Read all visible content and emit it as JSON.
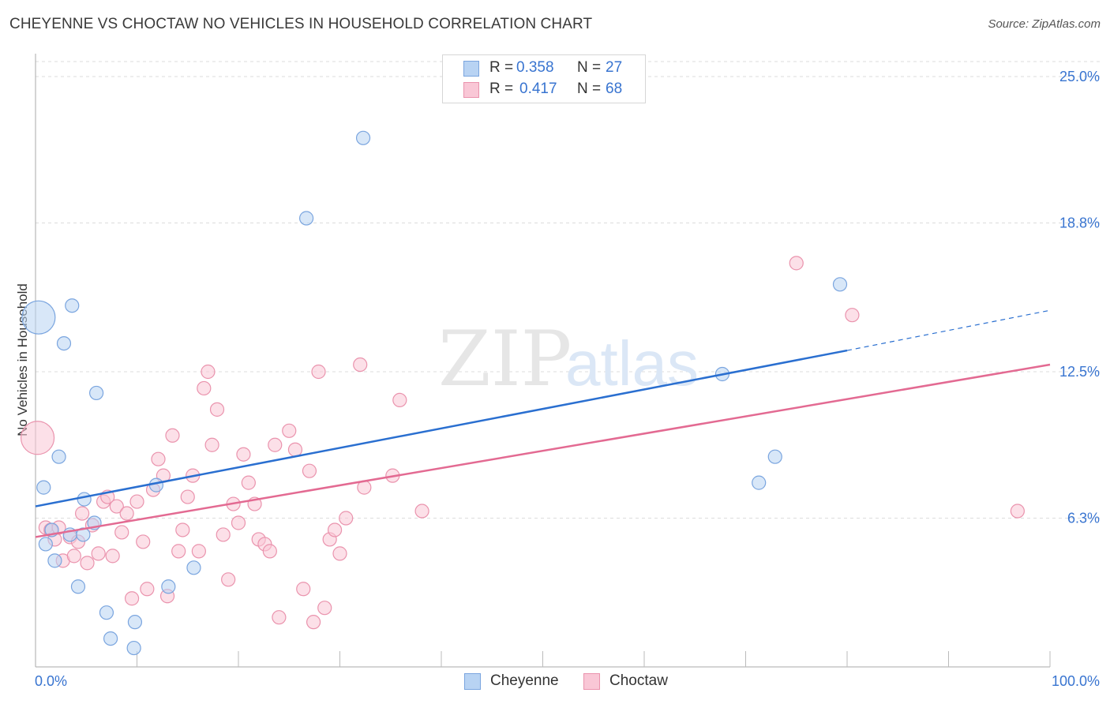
{
  "title": "CHEYENNE VS CHOCTAW NO VEHICLES IN HOUSEHOLD CORRELATION CHART",
  "source": "Source: ZipAtlas.com",
  "legend": {
    "rows": [
      {
        "r_label": "R = ",
        "r_value": "0.358",
        "n_label": "N = ",
        "n_value": "27"
      },
      {
        "r_label": "R = ",
        "r_value": "0.417",
        "n_label": "N = ",
        "n_value": "68"
      }
    ]
  },
  "watermark": {
    "part1": "ZIP",
    "part2": "atlas"
  },
  "colors": {
    "cheyenne_fill": "#b8d3f3",
    "cheyenne_stroke": "#7aa5df",
    "cheyenne_line": "#2a6fd0",
    "choctaw_fill": "#f9c7d6",
    "choctaw_stroke": "#ea93ad",
    "choctaw_line": "#e36a92",
    "axis_label": "#3874d0"
  },
  "chart_data": {
    "type": "scatter",
    "title": "CHEYENNE VS CHOCTAW NO VEHICLES IN HOUSEHOLD CORRELATION CHART",
    "xlabel": "",
    "ylabel": "No Vehicles in Household",
    "xlim": [
      0,
      100
    ],
    "ylim": [
      0,
      25.5
    ],
    "x_tick_labels": [
      "0.0%",
      "100.0%"
    ],
    "y_ticks": [
      6.3,
      12.5,
      18.8,
      25.0
    ],
    "y_tick_labels": [
      "6.3%",
      "12.5%",
      "18.8%",
      "25.0%"
    ],
    "series": [
      {
        "name": "Cheyenne",
        "r": 0.358,
        "n": 27,
        "points": [
          {
            "x": 0.3,
            "y": 14.8,
            "size": "large"
          },
          {
            "x": 0.8,
            "y": 7.6
          },
          {
            "x": 1.0,
            "y": 5.2
          },
          {
            "x": 1.6,
            "y": 5.8
          },
          {
            "x": 1.9,
            "y": 4.5
          },
          {
            "x": 2.3,
            "y": 8.9
          },
          {
            "x": 2.8,
            "y": 13.7
          },
          {
            "x": 3.4,
            "y": 5.6
          },
          {
            "x": 3.6,
            "y": 15.3
          },
          {
            "x": 4.2,
            "y": 3.4
          },
          {
            "x": 4.7,
            "y": 5.6
          },
          {
            "x": 4.8,
            "y": 7.1
          },
          {
            "x": 5.8,
            "y": 6.1
          },
          {
            "x": 6.0,
            "y": 11.6
          },
          {
            "x": 7.0,
            "y": 2.3
          },
          {
            "x": 7.4,
            "y": 1.2
          },
          {
            "x": 9.7,
            "y": 0.8
          },
          {
            "x": 9.8,
            "y": 1.9
          },
          {
            "x": 11.9,
            "y": 7.7
          },
          {
            "x": 13.1,
            "y": 3.4
          },
          {
            "x": 15.6,
            "y": 4.2
          },
          {
            "x": 26.7,
            "y": 19.0
          },
          {
            "x": 32.3,
            "y": 22.4
          },
          {
            "x": 67.7,
            "y": 12.4
          },
          {
            "x": 71.3,
            "y": 7.8
          },
          {
            "x": 72.9,
            "y": 8.9
          },
          {
            "x": 79.3,
            "y": 16.2
          }
        ],
        "trend": {
          "x0": 0,
          "y0": 6.8,
          "x1": 80,
          "y1": 13.4,
          "dashed_to_x": 100,
          "dashed_to_y": 15.1
        }
      },
      {
        "name": "Choctaw",
        "r": 0.417,
        "n": 68,
        "points": [
          {
            "x": 0.2,
            "y": 9.7,
            "size": "large"
          },
          {
            "x": 1.0,
            "y": 5.9
          },
          {
            "x": 1.5,
            "y": 5.8
          },
          {
            "x": 1.9,
            "y": 5.4
          },
          {
            "x": 2.3,
            "y": 5.9
          },
          {
            "x": 2.7,
            "y": 4.5
          },
          {
            "x": 3.4,
            "y": 5.5
          },
          {
            "x": 3.8,
            "y": 4.7
          },
          {
            "x": 4.2,
            "y": 5.3
          },
          {
            "x": 4.6,
            "y": 6.5
          },
          {
            "x": 5.1,
            "y": 4.4
          },
          {
            "x": 5.6,
            "y": 6.0
          },
          {
            "x": 6.2,
            "y": 4.8
          },
          {
            "x": 6.7,
            "y": 7.0
          },
          {
            "x": 7.1,
            "y": 7.2
          },
          {
            "x": 7.6,
            "y": 4.7
          },
          {
            "x": 8.0,
            "y": 6.8
          },
          {
            "x": 8.5,
            "y": 5.7
          },
          {
            "x": 9.0,
            "y": 6.5
          },
          {
            "x": 9.5,
            "y": 2.9
          },
          {
            "x": 10.0,
            "y": 7.0
          },
          {
            "x": 10.6,
            "y": 5.3
          },
          {
            "x": 11.0,
            "y": 3.3
          },
          {
            "x": 11.6,
            "y": 7.5
          },
          {
            "x": 12.1,
            "y": 8.8
          },
          {
            "x": 12.6,
            "y": 8.1
          },
          {
            "x": 13.0,
            "y": 3.0
          },
          {
            "x": 13.5,
            "y": 9.8
          },
          {
            "x": 14.1,
            "y": 4.9
          },
          {
            "x": 14.5,
            "y": 5.8
          },
          {
            "x": 15.0,
            "y": 7.2
          },
          {
            "x": 15.5,
            "y": 8.1
          },
          {
            "x": 16.1,
            "y": 4.9
          },
          {
            "x": 16.6,
            "y": 11.8
          },
          {
            "x": 17.0,
            "y": 12.5
          },
          {
            "x": 17.4,
            "y": 9.4
          },
          {
            "x": 17.9,
            "y": 10.9
          },
          {
            "x": 18.5,
            "y": 5.6
          },
          {
            "x": 19.0,
            "y": 3.7
          },
          {
            "x": 19.5,
            "y": 6.9
          },
          {
            "x": 20.0,
            "y": 6.1
          },
          {
            "x": 20.5,
            "y": 9.0
          },
          {
            "x": 21.0,
            "y": 7.8
          },
          {
            "x": 21.6,
            "y": 6.9
          },
          {
            "x": 22.0,
            "y": 5.4
          },
          {
            "x": 22.6,
            "y": 5.2
          },
          {
            "x": 23.1,
            "y": 4.9
          },
          {
            "x": 23.6,
            "y": 9.4
          },
          {
            "x": 24.0,
            "y": 2.1
          },
          {
            "x": 25.0,
            "y": 10.0
          },
          {
            "x": 25.6,
            "y": 9.2
          },
          {
            "x": 26.4,
            "y": 3.3
          },
          {
            "x": 27.0,
            "y": 8.3
          },
          {
            "x": 27.4,
            "y": 1.9
          },
          {
            "x": 27.9,
            "y": 12.5
          },
          {
            "x": 28.5,
            "y": 2.5
          },
          {
            "x": 29.0,
            "y": 5.4
          },
          {
            "x": 29.5,
            "y": 5.8
          },
          {
            "x": 30.0,
            "y": 4.8
          },
          {
            "x": 30.6,
            "y": 6.3
          },
          {
            "x": 32.0,
            "y": 12.8
          },
          {
            "x": 32.4,
            "y": 7.6
          },
          {
            "x": 35.9,
            "y": 11.3
          },
          {
            "x": 35.2,
            "y": 8.1
          },
          {
            "x": 38.1,
            "y": 6.6
          },
          {
            "x": 75.0,
            "y": 17.1
          },
          {
            "x": 80.5,
            "y": 14.9
          },
          {
            "x": 96.8,
            "y": 6.6
          }
        ],
        "trend": {
          "x0": 0,
          "y0": 5.5,
          "x1": 100,
          "y1": 12.8
        }
      }
    ],
    "legend_position": "top-center",
    "bottom_legend": [
      "Cheyenne",
      "Choctaw"
    ]
  }
}
